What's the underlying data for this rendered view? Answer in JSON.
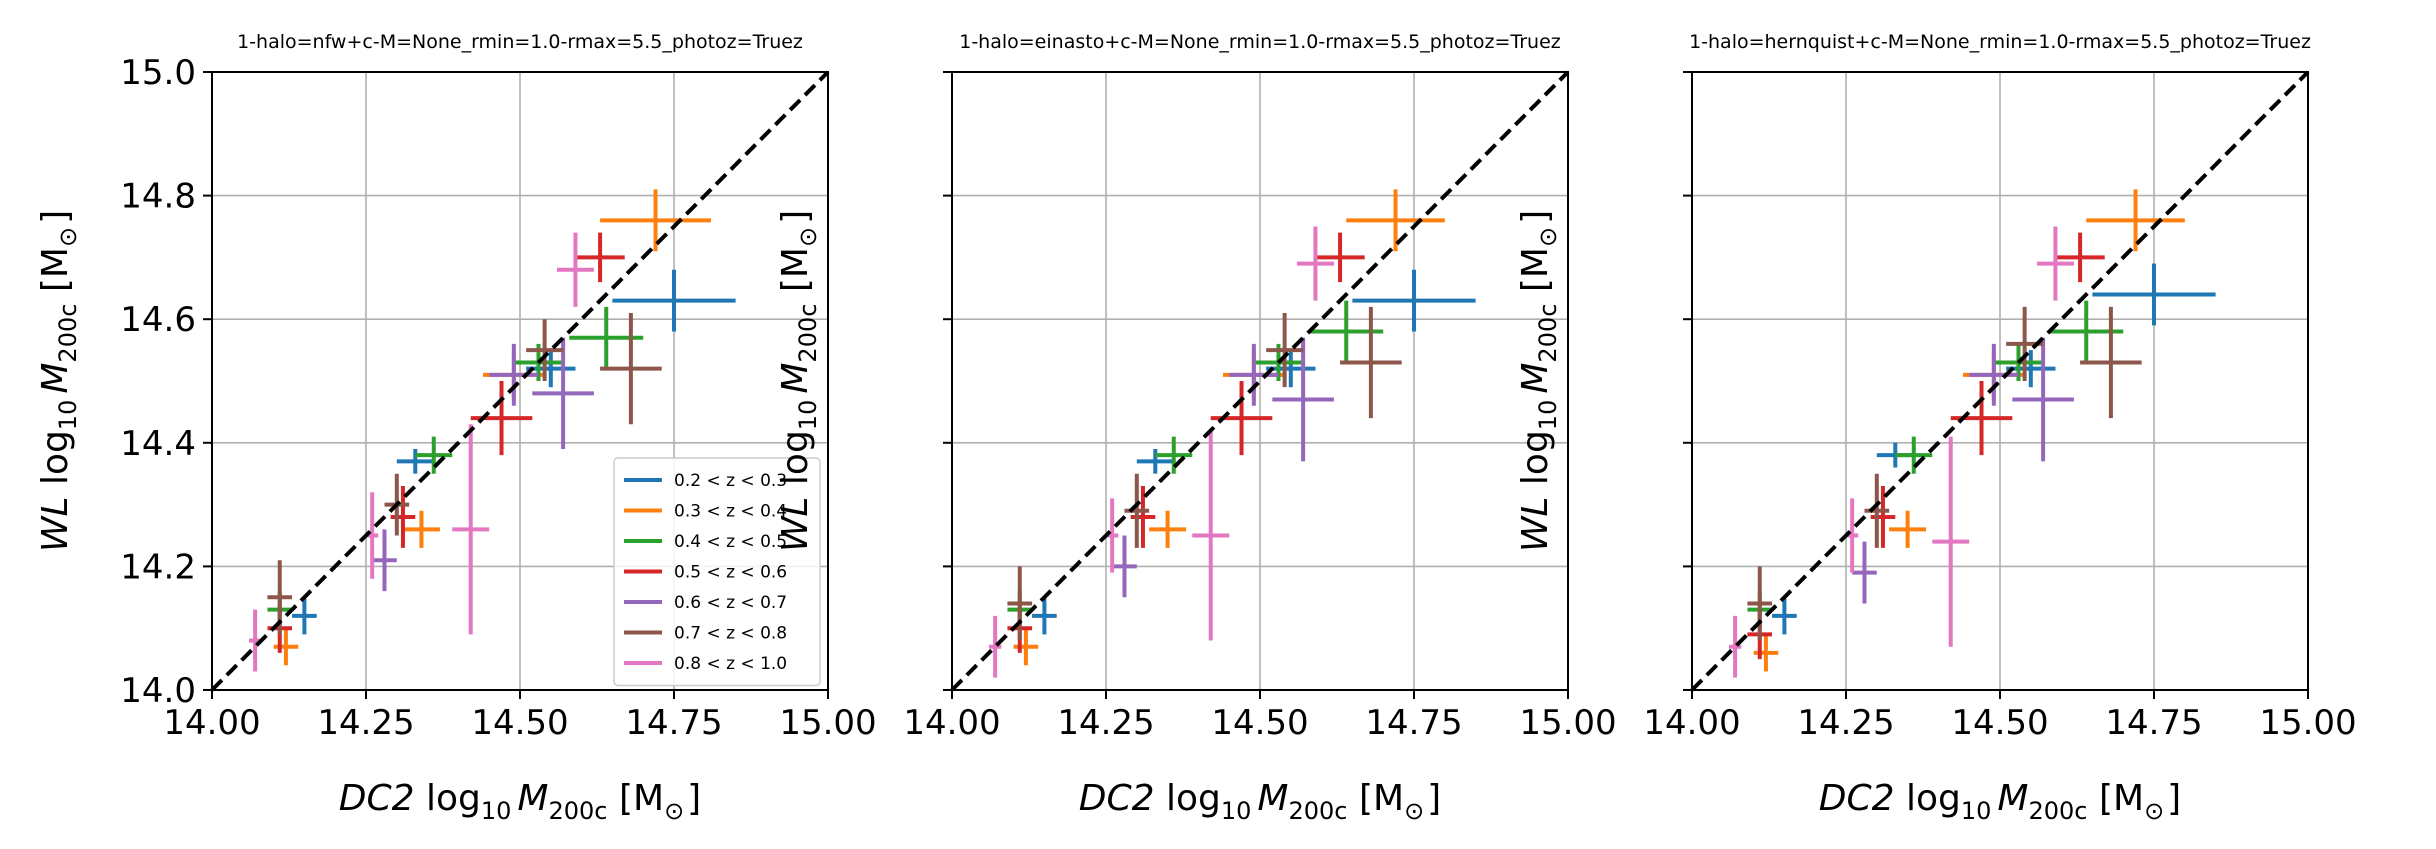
{
  "figure": {
    "xlabel_prefix": "DC2",
    "ylabel_prefix": "WL",
    "label_suffix": " log",
    "label_sub": "10",
    "label_var": "M",
    "label_var_sub": "200c",
    "label_units": " [M",
    "label_units_sub": "⊙",
    "label_units_close": "]",
    "x_tick_labels": [
      "14.00",
      "14.25",
      "14.50",
      "14.75",
      "15.00"
    ],
    "y_tick_labels": [
      "14.0",
      "14.2",
      "14.4",
      "14.6",
      "14.8",
      "15.0"
    ]
  },
  "legend": {
    "entries": [
      {
        "label": "0.2 < z < 0.3",
        "color": "#1f77b4"
      },
      {
        "label": "0.3 < z < 0.4",
        "color": "#ff7f0e"
      },
      {
        "label": "0.4 < z < 0.5",
        "color": "#2ca02c"
      },
      {
        "label": "0.5 < z < 0.6",
        "color": "#d62728"
      },
      {
        "label": "0.6 < z < 0.7",
        "color": "#9467bd"
      },
      {
        "label": "0.7 < z < 0.8",
        "color": "#8c564b"
      },
      {
        "label": "0.8 < z < 1.0",
        "color": "#e377c2"
      }
    ]
  },
  "chart_data": [
    {
      "type": "scatter",
      "title": "1-halo=nfw+c-M=None_rmin=1.0-rmax=5.5_photoz=Truez",
      "xlim": [
        14.0,
        15.0
      ],
      "ylim": [
        14.0,
        15.0
      ],
      "grid": true,
      "legend_position": "lower-right",
      "show_y_ticklabels": true,
      "reference_line": {
        "style": "dashed",
        "color": "#000000",
        "from": [
          14.0,
          14.0
        ],
        "to": [
          15.0,
          15.0
        ]
      },
      "series": [
        {
          "name": "0.2 < z < 0.3",
          "color": "#1f77b4",
          "points": [
            {
              "x": 14.15,
              "xerr": 0.02,
              "y": 14.12,
              "yerr": 0.03
            },
            {
              "x": 14.33,
              "xerr": 0.03,
              "y": 14.37,
              "yerr": 0.02
            },
            {
              "x": 14.55,
              "xerr": 0.04,
              "y": 14.52,
              "yerr": 0.03
            },
            {
              "x": 14.75,
              "xerr": 0.1,
              "y": 14.63,
              "yerr": 0.05
            }
          ]
        },
        {
          "name": "0.3 < z < 0.4",
          "color": "#ff7f0e",
          "points": [
            {
              "x": 14.12,
              "xerr": 0.02,
              "y": 14.07,
              "yerr": 0.03
            },
            {
              "x": 14.34,
              "xerr": 0.03,
              "y": 14.26,
              "yerr": 0.03
            },
            {
              "x": 14.49,
              "xerr": 0.05,
              "y": 14.51,
              "yerr": 0.04
            },
            {
              "x": 14.72,
              "xerr": 0.09,
              "y": 14.76,
              "yerr": 0.05
            }
          ]
        },
        {
          "name": "0.4 < z < 0.5",
          "color": "#2ca02c",
          "points": [
            {
              "x": 14.11,
              "xerr": 0.02,
              "y": 14.13,
              "yerr": 0.03
            },
            {
              "x": 14.36,
              "xerr": 0.03,
              "y": 14.38,
              "yerr": 0.03
            },
            {
              "x": 14.53,
              "xerr": 0.04,
              "y": 14.53,
              "yerr": 0.03
            },
            {
              "x": 14.64,
              "xerr": 0.06,
              "y": 14.57,
              "yerr": 0.05
            }
          ]
        },
        {
          "name": "0.5 < z < 0.6",
          "color": "#d62728",
          "points": [
            {
              "x": 14.11,
              "xerr": 0.02,
              "y": 14.1,
              "yerr": 0.04
            },
            {
              "x": 14.31,
              "xerr": 0.02,
              "y": 14.28,
              "yerr": 0.05
            },
            {
              "x": 14.47,
              "xerr": 0.05,
              "y": 14.44,
              "yerr": 0.06
            },
            {
              "x": 14.63,
              "xerr": 0.04,
              "y": 14.7,
              "yerr": 0.04
            }
          ]
        },
        {
          "name": "0.6 < z < 0.7",
          "color": "#9467bd",
          "points": [
            {
              "x": 14.28,
              "xerr": 0.02,
              "y": 14.21,
              "yerr": 0.05
            },
            {
              "x": 14.49,
              "xerr": 0.04,
              "y": 14.51,
              "yerr": 0.05
            },
            {
              "x": 14.57,
              "xerr": 0.05,
              "y": 14.48,
              "yerr": 0.09
            }
          ]
        },
        {
          "name": "0.7 < z < 0.8",
          "color": "#8c564b",
          "points": [
            {
              "x": 14.11,
              "xerr": 0.02,
              "y": 14.15,
              "yerr": 0.06
            },
            {
              "x": 14.3,
              "xerr": 0.02,
              "y": 14.3,
              "yerr": 0.05
            },
            {
              "x": 14.54,
              "xerr": 0.03,
              "y": 14.55,
              "yerr": 0.05
            },
            {
              "x": 14.68,
              "xerr": 0.05,
              "y": 14.52,
              "yerr": 0.09
            }
          ]
        },
        {
          "name": "0.8 < z < 1.0",
          "color": "#e377c2",
          "points": [
            {
              "x": 14.07,
              "xerr": 0.01,
              "y": 14.08,
              "yerr": 0.05
            },
            {
              "x": 14.26,
              "xerr": 0.01,
              "y": 14.25,
              "yerr": 0.07
            },
            {
              "x": 14.42,
              "xerr": 0.03,
              "y": 14.26,
              "yerr": 0.17
            },
            {
              "x": 14.59,
              "xerr": 0.03,
              "y": 14.68,
              "yerr": 0.06
            }
          ]
        }
      ]
    },
    {
      "type": "scatter",
      "title": "1-halo=einasto+c-M=None_rmin=1.0-rmax=5.5_photoz=Truez",
      "xlim": [
        14.0,
        15.0
      ],
      "ylim": [
        14.0,
        15.0
      ],
      "grid": true,
      "legend_position": "none",
      "show_y_ticklabels": false,
      "reference_line": {
        "style": "dashed",
        "color": "#000000",
        "from": [
          14.0,
          14.0
        ],
        "to": [
          15.0,
          15.0
        ]
      },
      "series": [
        {
          "name": "0.2 < z < 0.3",
          "color": "#1f77b4",
          "points": [
            {
              "x": 14.15,
              "xerr": 0.02,
              "y": 14.12,
              "yerr": 0.03
            },
            {
              "x": 14.33,
              "xerr": 0.03,
              "y": 14.37,
              "yerr": 0.02
            },
            {
              "x": 14.55,
              "xerr": 0.04,
              "y": 14.52,
              "yerr": 0.03
            },
            {
              "x": 14.75,
              "xerr": 0.1,
              "y": 14.63,
              "yerr": 0.05
            }
          ]
        },
        {
          "name": "0.3 < z < 0.4",
          "color": "#ff7f0e",
          "points": [
            {
              "x": 14.12,
              "xerr": 0.02,
              "y": 14.07,
              "yerr": 0.03
            },
            {
              "x": 14.35,
              "xerr": 0.03,
              "y": 14.26,
              "yerr": 0.03
            },
            {
              "x": 14.49,
              "xerr": 0.05,
              "y": 14.51,
              "yerr": 0.04
            },
            {
              "x": 14.72,
              "xerr": 0.08,
              "y": 14.76,
              "yerr": 0.05
            }
          ]
        },
        {
          "name": "0.4 < z < 0.5",
          "color": "#2ca02c",
          "points": [
            {
              "x": 14.11,
              "xerr": 0.02,
              "y": 14.13,
              "yerr": 0.03
            },
            {
              "x": 14.36,
              "xerr": 0.03,
              "y": 14.38,
              "yerr": 0.03
            },
            {
              "x": 14.53,
              "xerr": 0.04,
              "y": 14.53,
              "yerr": 0.03
            },
            {
              "x": 14.64,
              "xerr": 0.06,
              "y": 14.58,
              "yerr": 0.05
            }
          ]
        },
        {
          "name": "0.5 < z < 0.6",
          "color": "#d62728",
          "points": [
            {
              "x": 14.11,
              "xerr": 0.02,
              "y": 14.1,
              "yerr": 0.04
            },
            {
              "x": 14.31,
              "xerr": 0.02,
              "y": 14.28,
              "yerr": 0.05
            },
            {
              "x": 14.47,
              "xerr": 0.05,
              "y": 14.44,
              "yerr": 0.06
            },
            {
              "x": 14.63,
              "xerr": 0.04,
              "y": 14.7,
              "yerr": 0.04
            }
          ]
        },
        {
          "name": "0.6 < z < 0.7",
          "color": "#9467bd",
          "points": [
            {
              "x": 14.28,
              "xerr": 0.02,
              "y": 14.2,
              "yerr": 0.05
            },
            {
              "x": 14.49,
              "xerr": 0.04,
              "y": 14.51,
              "yerr": 0.05
            },
            {
              "x": 14.57,
              "xerr": 0.05,
              "y": 14.47,
              "yerr": 0.1
            }
          ]
        },
        {
          "name": "0.7 < z < 0.8",
          "color": "#8c564b",
          "points": [
            {
              "x": 14.11,
              "xerr": 0.02,
              "y": 14.14,
              "yerr": 0.06
            },
            {
              "x": 14.3,
              "xerr": 0.02,
              "y": 14.29,
              "yerr": 0.06
            },
            {
              "x": 14.54,
              "xerr": 0.03,
              "y": 14.55,
              "yerr": 0.06
            },
            {
              "x": 14.68,
              "xerr": 0.05,
              "y": 14.53,
              "yerr": 0.09
            }
          ]
        },
        {
          "name": "0.8 < z < 1.0",
          "color": "#e377c2",
          "points": [
            {
              "x": 14.07,
              "xerr": 0.01,
              "y": 14.07,
              "yerr": 0.05
            },
            {
              "x": 14.26,
              "xerr": 0.01,
              "y": 14.25,
              "yerr": 0.06
            },
            {
              "x": 14.42,
              "xerr": 0.03,
              "y": 14.25,
              "yerr": 0.17
            },
            {
              "x": 14.59,
              "xerr": 0.03,
              "y": 14.69,
              "yerr": 0.06
            }
          ]
        }
      ]
    },
    {
      "type": "scatter",
      "title": "1-halo=hernquist+c-M=None_rmin=1.0-rmax=5.5_photoz=Truez",
      "xlim": [
        14.0,
        15.0
      ],
      "ylim": [
        14.0,
        15.0
      ],
      "grid": true,
      "legend_position": "none",
      "show_y_ticklabels": false,
      "reference_line": {
        "style": "dashed",
        "color": "#000000",
        "from": [
          14.0,
          14.0
        ],
        "to": [
          15.0,
          15.0
        ]
      },
      "series": [
        {
          "name": "0.2 < z < 0.3",
          "color": "#1f77b4",
          "points": [
            {
              "x": 14.15,
              "xerr": 0.02,
              "y": 14.12,
              "yerr": 0.03
            },
            {
              "x": 14.33,
              "xerr": 0.03,
              "y": 14.38,
              "yerr": 0.02
            },
            {
              "x": 14.55,
              "xerr": 0.04,
              "y": 14.52,
              "yerr": 0.03
            },
            {
              "x": 14.75,
              "xerr": 0.1,
              "y": 14.64,
              "yerr": 0.05
            }
          ]
        },
        {
          "name": "0.3 < z < 0.4",
          "color": "#ff7f0e",
          "points": [
            {
              "x": 14.12,
              "xerr": 0.02,
              "y": 14.06,
              "yerr": 0.03
            },
            {
              "x": 14.35,
              "xerr": 0.03,
              "y": 14.26,
              "yerr": 0.03
            },
            {
              "x": 14.49,
              "xerr": 0.05,
              "y": 14.51,
              "yerr": 0.04
            },
            {
              "x": 14.72,
              "xerr": 0.08,
              "y": 14.76,
              "yerr": 0.05
            }
          ]
        },
        {
          "name": "0.4 < z < 0.5",
          "color": "#2ca02c",
          "points": [
            {
              "x": 14.11,
              "xerr": 0.02,
              "y": 14.13,
              "yerr": 0.03
            },
            {
              "x": 14.36,
              "xerr": 0.03,
              "y": 14.38,
              "yerr": 0.03
            },
            {
              "x": 14.53,
              "xerr": 0.04,
              "y": 14.53,
              "yerr": 0.03
            },
            {
              "x": 14.64,
              "xerr": 0.06,
              "y": 14.58,
              "yerr": 0.05
            }
          ]
        },
        {
          "name": "0.5 < z < 0.6",
          "color": "#d62728",
          "points": [
            {
              "x": 14.11,
              "xerr": 0.02,
              "y": 14.09,
              "yerr": 0.04
            },
            {
              "x": 14.31,
              "xerr": 0.02,
              "y": 14.28,
              "yerr": 0.05
            },
            {
              "x": 14.47,
              "xerr": 0.05,
              "y": 14.44,
              "yerr": 0.06
            },
            {
              "x": 14.63,
              "xerr": 0.04,
              "y": 14.7,
              "yerr": 0.04
            }
          ]
        },
        {
          "name": "0.6 < z < 0.7",
          "color": "#9467bd",
          "points": [
            {
              "x": 14.28,
              "xerr": 0.02,
              "y": 14.19,
              "yerr": 0.05
            },
            {
              "x": 14.49,
              "xerr": 0.04,
              "y": 14.51,
              "yerr": 0.05
            },
            {
              "x": 14.57,
              "xerr": 0.05,
              "y": 14.47,
              "yerr": 0.1
            }
          ]
        },
        {
          "name": "0.7 < z < 0.8",
          "color": "#8c564b",
          "points": [
            {
              "x": 14.11,
              "xerr": 0.02,
              "y": 14.14,
              "yerr": 0.06
            },
            {
              "x": 14.3,
              "xerr": 0.02,
              "y": 14.29,
              "yerr": 0.06
            },
            {
              "x": 14.54,
              "xerr": 0.03,
              "y": 14.56,
              "yerr": 0.06
            },
            {
              "x": 14.68,
              "xerr": 0.05,
              "y": 14.53,
              "yerr": 0.09
            }
          ]
        },
        {
          "name": "0.8 < z < 1.0",
          "color": "#e377c2",
          "points": [
            {
              "x": 14.07,
              "xerr": 0.01,
              "y": 14.07,
              "yerr": 0.05
            },
            {
              "x": 14.26,
              "xerr": 0.01,
              "y": 14.25,
              "yerr": 0.06
            },
            {
              "x": 14.42,
              "xerr": 0.03,
              "y": 14.24,
              "yerr": 0.17
            },
            {
              "x": 14.59,
              "xerr": 0.03,
              "y": 14.69,
              "yerr": 0.06
            }
          ]
        }
      ]
    }
  ]
}
